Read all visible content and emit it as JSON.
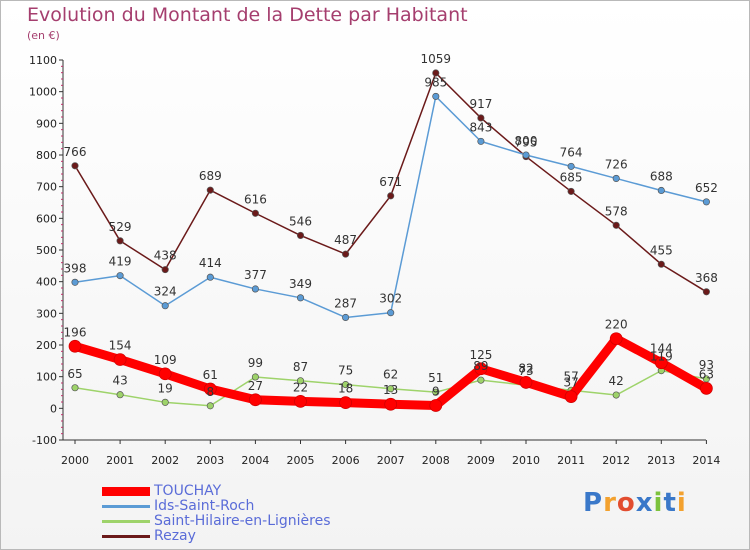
{
  "title": "Evolution du Montant de la Dette par Habitant",
  "unit_label": "(en €)",
  "brand": {
    "text": "Proxiti",
    "colors": [
      "#3a78c9",
      "#f3a12e",
      "#e24d2f",
      "#3a78c9",
      "#7cc23c",
      "#3a78c9",
      "#f3a12e"
    ]
  },
  "chart_data": {
    "type": "line",
    "title": "Evolution du Montant de la Dette par Habitant",
    "ylabel": "(en €)",
    "ylim": [
      -100,
      1100
    ],
    "yticks": [
      -100,
      0,
      100,
      200,
      300,
      400,
      500,
      600,
      700,
      800,
      900,
      1000,
      1100
    ],
    "x": [
      "2000",
      "2001",
      "2002",
      "2003",
      "2004",
      "2005",
      "2006",
      "2007",
      "2008",
      "2009",
      "2010",
      "2011",
      "2012",
      "2013",
      "2014"
    ],
    "grid": false,
    "legend_position": "bottom-left",
    "series": [
      {
        "name": "Rezay",
        "color": "#6b1a1a",
        "values": [
          766,
          529,
          438,
          689,
          616,
          546,
          487,
          671,
          1059,
          917,
          795,
          685,
          578,
          455,
          368
        ]
      },
      {
        "name": "Ids-Saint-Roch",
        "color": "#5b9bd5",
        "values": [
          398,
          419,
          324,
          414,
          377,
          349,
          287,
          302,
          985,
          843,
          800,
          764,
          726,
          688,
          652
        ]
      },
      {
        "name": "Saint-Hilaire-en-Lignières",
        "color": "#9ed36a",
        "values": [
          65,
          43,
          19,
          8,
          99,
          87,
          75,
          62,
          51,
          89,
          73,
          57,
          42,
          119,
          93
        ]
      },
      {
        "name": "TOUCHAY",
        "color": "#ff0000",
        "values": [
          196,
          154,
          109,
          61,
          27,
          22,
          18,
          13,
          9,
          125,
          82,
          37,
          220,
          144,
          63
        ]
      }
    ]
  },
  "legend": [
    {
      "name": "TOUCHAY",
      "color": "#ff0000"
    },
    {
      "name": "Ids-Saint-Roch",
      "color": "#5b9bd5"
    },
    {
      "name": "Saint-Hilaire-en-Lignières",
      "color": "#9ed36a"
    },
    {
      "name": "Rezay",
      "color": "#6b1a1a"
    }
  ]
}
